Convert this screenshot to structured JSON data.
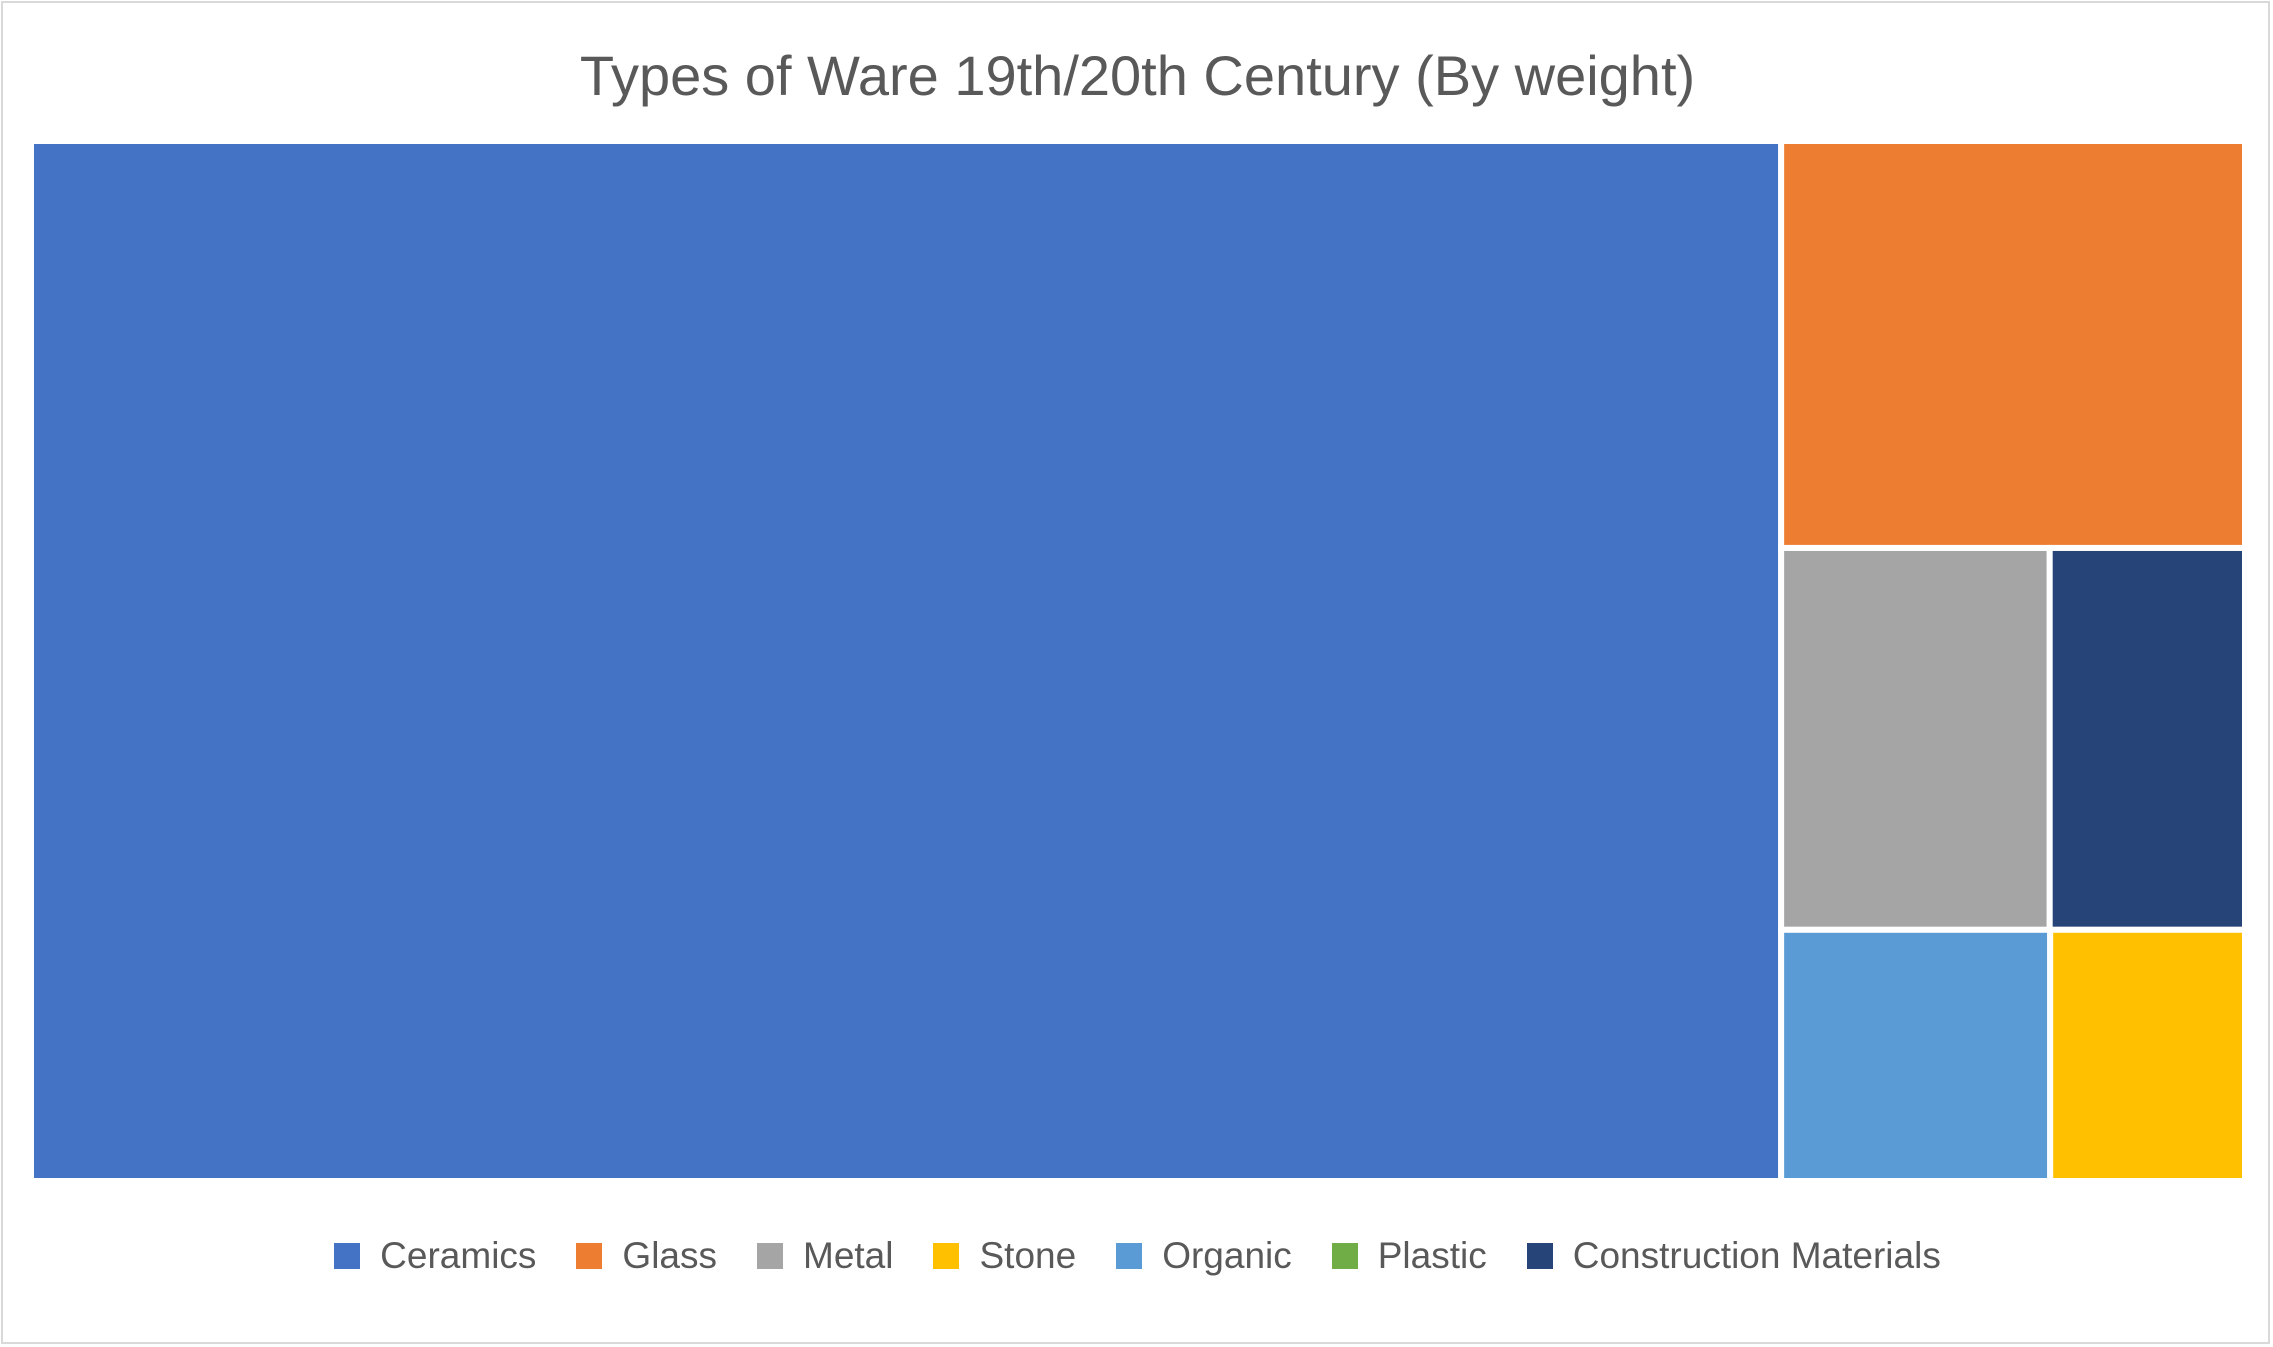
{
  "chart_data": {
    "type": "treemap",
    "title": "Types of Ware 19th/20th Century (By weight)",
    "legend_position": "bottom",
    "categories": [
      "Ceramics",
      "Glass",
      "Metal",
      "Stone",
      "Organic",
      "Plastic",
      "Construction Materials"
    ],
    "colors": {
      "Ceramics": "#4472C4",
      "Glass": "#ED7D31",
      "Metal": "#A5A5A5",
      "Stone": "#FFC000",
      "Organic": "#5B9BD5",
      "Plastic": "#70AD47",
      "Construction Materials": "#264478"
    },
    "values": [
      {
        "name": "Ceramics",
        "value": 78.1
      },
      {
        "name": "Glass",
        "value": 8.1
      },
      {
        "name": "Metal",
        "value": 4.4
      },
      {
        "name": "Construction Materials",
        "value": 3.2
      },
      {
        "name": "Organic",
        "value": 2.9
      },
      {
        "name": "Stone",
        "value": 2.1
      },
      {
        "name": "Plastic",
        "value": 0.0
      }
    ]
  }
}
